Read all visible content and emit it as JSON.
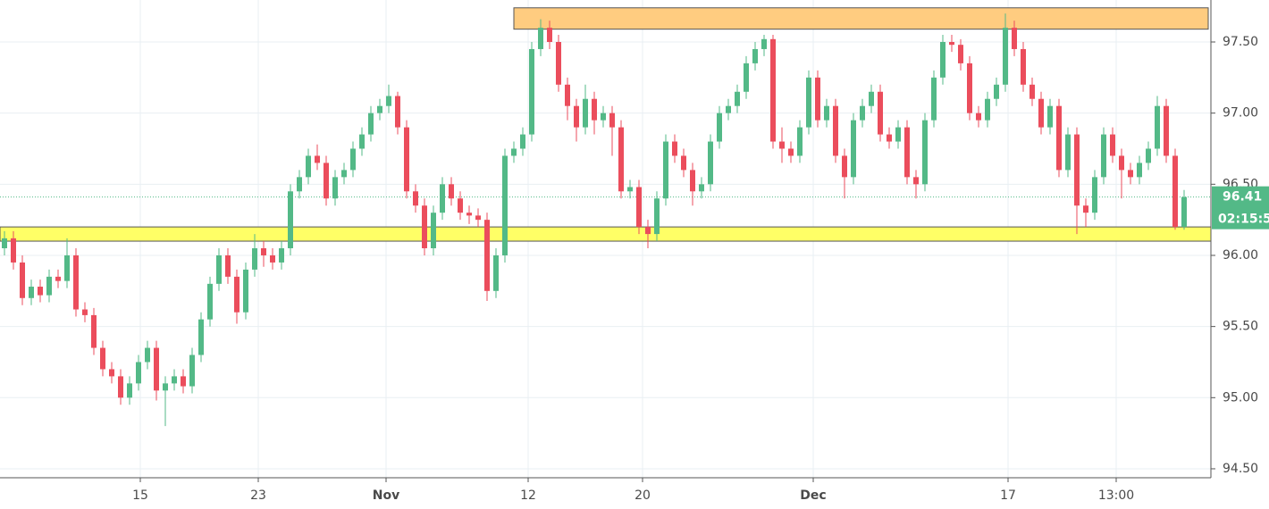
{
  "chart_data": {
    "type": "candlestick",
    "up_color": "#53b987",
    "down_color": "#eb4d5c",
    "grid": true,
    "xlim": [
      -0.5,
      135
    ],
    "ylim": [
      94.437,
      97.795
    ],
    "xticks": [
      {
        "value": 15.2,
        "label": "15"
      },
      {
        "value": 28.4,
        "label": "23"
      },
      {
        "value": 42.7,
        "label": "Nov"
      },
      {
        "value": 58.6,
        "label": "12"
      },
      {
        "value": 71.4,
        "label": "20"
      },
      {
        "value": 90.5,
        "label": "Dec"
      },
      {
        "value": 112.3,
        "label": "17"
      },
      {
        "value": 124.4,
        "label": "13:00"
      }
    ],
    "yticks": [
      {
        "value": 94.5,
        "label": "94.50"
      },
      {
        "value": 95,
        "label": "95.00"
      },
      {
        "value": 95.5,
        "label": "95.50"
      },
      {
        "value": 96,
        "label": "96.00"
      },
      {
        "value": 96.5,
        "label": "96.50"
      },
      {
        "value": 97,
        "label": "97.00"
      },
      {
        "value": 97.5,
        "label": "97.50"
      }
    ],
    "zones": [
      {
        "from": 97.59,
        "to": 97.74,
        "x0": 57.0,
        "x1": 134.7,
        "color": "#ffcc80"
      },
      {
        "from": 96.1,
        "to": 96.2,
        "x0": -0.5,
        "x1": 135,
        "color": "#ffff66"
      }
    ],
    "last_price": {
      "value": 96.41,
      "label": "96.41",
      "countdown": "02:15:5",
      "color": "#53b987"
    },
    "ohlc": [
      [
        96.05,
        96.17,
        96.0,
        96.12
      ],
      [
        96.12,
        96.17,
        95.9,
        95.95
      ],
      [
        95.95,
        96.0,
        95.65,
        95.7
      ],
      [
        95.7,
        95.83,
        95.65,
        95.78
      ],
      [
        95.78,
        95.83,
        95.67,
        95.72
      ],
      [
        95.72,
        95.9,
        95.67,
        95.85
      ],
      [
        95.85,
        95.9,
        95.77,
        95.82
      ],
      [
        95.82,
        96.12,
        95.77,
        96.0
      ],
      [
        96.0,
        96.05,
        95.57,
        95.62
      ],
      [
        95.62,
        95.67,
        95.53,
        95.58
      ],
      [
        95.58,
        95.63,
        95.3,
        95.35
      ],
      [
        95.35,
        95.4,
        95.15,
        95.2
      ],
      [
        95.2,
        95.25,
        95.1,
        95.15
      ],
      [
        95.15,
        95.2,
        94.95,
        95.0
      ],
      [
        95.0,
        95.15,
        94.95,
        95.1
      ],
      [
        95.1,
        95.3,
        95.05,
        95.25
      ],
      [
        95.25,
        95.4,
        95.2,
        95.35
      ],
      [
        95.35,
        95.4,
        94.98,
        95.05
      ],
      [
        95.05,
        95.15,
        94.8,
        95.1
      ],
      [
        95.1,
        95.2,
        95.05,
        95.15
      ],
      [
        95.15,
        95.2,
        95.03,
        95.08
      ],
      [
        95.08,
        95.35,
        95.03,
        95.3
      ],
      [
        95.3,
        95.6,
        95.25,
        95.55
      ],
      [
        95.55,
        95.85,
        95.5,
        95.8
      ],
      [
        95.8,
        96.05,
        95.75,
        96.0
      ],
      [
        96.0,
        96.05,
        95.8,
        95.85
      ],
      [
        95.85,
        95.9,
        95.52,
        95.6
      ],
      [
        95.6,
        95.95,
        95.55,
        95.9
      ],
      [
        95.9,
        96.15,
        95.85,
        96.05
      ],
      [
        96.05,
        96.1,
        95.92,
        96.0
      ],
      [
        96.0,
        96.05,
        95.9,
        95.95
      ],
      [
        95.95,
        96.1,
        95.9,
        96.05
      ],
      [
        96.05,
        96.5,
        96.0,
        96.45
      ],
      [
        96.45,
        96.6,
        96.4,
        96.55
      ],
      [
        96.55,
        96.75,
        96.5,
        96.7
      ],
      [
        96.7,
        96.78,
        96.6,
        96.65
      ],
      [
        96.65,
        96.7,
        96.35,
        96.4
      ],
      [
        96.4,
        96.6,
        96.35,
        96.55
      ],
      [
        96.55,
        96.65,
        96.5,
        96.6
      ],
      [
        96.6,
        96.8,
        96.55,
        96.75
      ],
      [
        96.75,
        96.9,
        96.7,
        96.85
      ],
      [
        96.85,
        97.05,
        96.8,
        97.0
      ],
      [
        97.0,
        97.1,
        96.95,
        97.05
      ],
      [
        97.05,
        97.2,
        97.0,
        97.12
      ],
      [
        97.12,
        97.15,
        96.85,
        96.9
      ],
      [
        96.9,
        96.95,
        96.4,
        96.45
      ],
      [
        96.45,
        96.5,
        96.3,
        96.35
      ],
      [
        96.35,
        96.4,
        96.0,
        96.05
      ],
      [
        96.05,
        96.35,
        96.0,
        96.3
      ],
      [
        96.3,
        96.55,
        96.25,
        96.5
      ],
      [
        96.5,
        96.55,
        96.35,
        96.4
      ],
      [
        96.4,
        96.45,
        96.25,
        96.3
      ],
      [
        96.3,
        96.35,
        96.22,
        96.28
      ],
      [
        96.28,
        96.33,
        96.2,
        96.25
      ],
      [
        96.25,
        96.3,
        95.68,
        95.75
      ],
      [
        95.75,
        96.05,
        95.7,
        96.0
      ],
      [
        96.0,
        96.75,
        95.95,
        96.7
      ],
      [
        96.7,
        96.8,
        96.65,
        96.75
      ],
      [
        96.75,
        96.9,
        96.7,
        96.85
      ],
      [
        96.85,
        97.5,
        96.8,
        97.45
      ],
      [
        97.45,
        97.66,
        97.4,
        97.6
      ],
      [
        97.6,
        97.65,
        97.45,
        97.5
      ],
      [
        97.5,
        97.55,
        97.15,
        97.2
      ],
      [
        97.2,
        97.25,
        96.95,
        97.05
      ],
      [
        97.05,
        97.1,
        96.8,
        96.9
      ],
      [
        96.9,
        97.2,
        96.85,
        97.1
      ],
      [
        97.1,
        97.15,
        96.85,
        96.95
      ],
      [
        96.95,
        97.05,
        96.9,
        97.0
      ],
      [
        97.0,
        97.05,
        96.7,
        96.9
      ],
      [
        96.9,
        96.95,
        96.4,
        96.45
      ],
      [
        96.45,
        96.53,
        96.4,
        96.48
      ],
      [
        96.48,
        96.53,
        96.15,
        96.2
      ],
      [
        96.2,
        96.25,
        96.05,
        96.15
      ],
      [
        96.15,
        96.45,
        96.1,
        96.4
      ],
      [
        96.4,
        96.85,
        96.35,
        96.8
      ],
      [
        96.8,
        96.85,
        96.65,
        96.7
      ],
      [
        96.7,
        96.75,
        96.55,
        96.6
      ],
      [
        96.6,
        96.65,
        96.35,
        96.45
      ],
      [
        96.45,
        96.55,
        96.4,
        96.5
      ],
      [
        96.5,
        96.85,
        96.45,
        96.8
      ],
      [
        96.8,
        97.05,
        96.75,
        97.0
      ],
      [
        97.0,
        97.1,
        96.95,
        97.05
      ],
      [
        97.05,
        97.2,
        97.0,
        97.15
      ],
      [
        97.15,
        97.4,
        97.1,
        97.35
      ],
      [
        97.35,
        97.5,
        97.3,
        97.45
      ],
      [
        97.45,
        97.55,
        97.4,
        97.52
      ],
      [
        97.52,
        97.55,
        96.75,
        96.8
      ],
      [
        96.8,
        96.9,
        96.65,
        96.75
      ],
      [
        96.75,
        96.8,
        96.65,
        96.7
      ],
      [
        96.7,
        96.95,
        96.65,
        96.9
      ],
      [
        96.9,
        97.3,
        96.85,
        97.25
      ],
      [
        97.25,
        97.3,
        96.9,
        96.95
      ],
      [
        96.95,
        97.1,
        96.9,
        97.05
      ],
      [
        97.05,
        97.1,
        96.65,
        96.7
      ],
      [
        96.7,
        96.75,
        96.4,
        96.55
      ],
      [
        96.55,
        97.0,
        96.5,
        96.95
      ],
      [
        96.95,
        97.1,
        96.9,
        97.05
      ],
      [
        97.05,
        97.2,
        97.0,
        97.15
      ],
      [
        97.15,
        97.2,
        96.8,
        96.85
      ],
      [
        96.85,
        96.9,
        96.75,
        96.8
      ],
      [
        96.8,
        96.95,
        96.75,
        96.9
      ],
      [
        96.9,
        96.95,
        96.5,
        96.55
      ],
      [
        96.55,
        96.6,
        96.4,
        96.5
      ],
      [
        96.5,
        97.0,
        96.45,
        96.95
      ],
      [
        96.95,
        97.3,
        96.9,
        97.25
      ],
      [
        97.25,
        97.55,
        97.2,
        97.5
      ],
      [
        97.5,
        97.55,
        97.43,
        97.48
      ],
      [
        97.48,
        97.52,
        97.3,
        97.35
      ],
      [
        97.35,
        97.4,
        96.95,
        97.0
      ],
      [
        97.0,
        97.05,
        96.9,
        96.95
      ],
      [
        96.95,
        97.15,
        96.9,
        97.1
      ],
      [
        97.1,
        97.25,
        97.05,
        97.2
      ],
      [
        97.2,
        97.7,
        97.15,
        97.6
      ],
      [
        97.6,
        97.65,
        97.4,
        97.45
      ],
      [
        97.45,
        97.5,
        97.15,
        97.2
      ],
      [
        97.2,
        97.25,
        97.05,
        97.1
      ],
      [
        97.1,
        97.15,
        96.85,
        96.9
      ],
      [
        96.9,
        97.1,
        96.85,
        97.05
      ],
      [
        97.05,
        97.1,
        96.55,
        96.6
      ],
      [
        96.6,
        96.9,
        96.55,
        96.85
      ],
      [
        96.85,
        96.9,
        96.15,
        96.35
      ],
      [
        96.35,
        96.4,
        96.2,
        96.3
      ],
      [
        96.3,
        96.6,
        96.25,
        96.55
      ],
      [
        96.55,
        96.9,
        96.5,
        96.85
      ],
      [
        96.85,
        96.9,
        96.65,
        96.7
      ],
      [
        96.7,
        96.75,
        96.4,
        96.6
      ],
      [
        96.6,
        96.65,
        96.5,
        96.55
      ],
      [
        96.55,
        96.7,
        96.5,
        96.65
      ],
      [
        96.65,
        96.8,
        96.6,
        96.75
      ],
      [
        96.75,
        97.12,
        96.7,
        97.05
      ],
      [
        97.05,
        97.1,
        96.65,
        96.7
      ],
      [
        96.7,
        96.75,
        96.18,
        96.2
      ],
      [
        96.2,
        96.46,
        96.18,
        96.41
      ]
    ]
  }
}
